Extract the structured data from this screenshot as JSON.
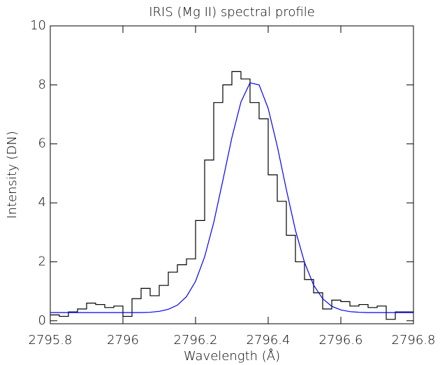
{
  "chart_data": {
    "type": "line",
    "title": "IRIS (Mg II) spectral profile",
    "xlabel": "Wavelength (Å)",
    "ylabel": "Intensity (DN)",
    "xlim": [
      2795.8,
      2796.8
    ],
    "ylim": [
      -0.1,
      10
    ],
    "xticks": [
      2795.8,
      2796.0,
      2796.2,
      2796.4,
      2796.6,
      2796.8
    ],
    "yticks": [
      0,
      2,
      4,
      6,
      8,
      10
    ],
    "series": [
      {
        "drawstyle": "steps-post",
        "color": "#000000",
        "x": [
          2795.8,
          2795.825,
          2795.85,
          2795.875,
          2795.9,
          2795.925,
          2795.95,
          2795.975,
          2796.0,
          2796.025,
          2796.05,
          2796.075,
          2796.1,
          2796.125,
          2796.15,
          2796.175,
          2796.2,
          2796.225,
          2796.25,
          2796.275,
          2796.3,
          2796.325,
          2796.35,
          2796.375,
          2796.4,
          2796.425,
          2796.45,
          2796.475,
          2796.5,
          2796.525,
          2796.55,
          2796.575,
          2796.6,
          2796.625,
          2796.65,
          2796.675,
          2796.7,
          2796.725,
          2796.75,
          2796.775
        ],
        "values": [
          0.2,
          0.15,
          0.3,
          0.4,
          0.6,
          0.55,
          0.45,
          0.5,
          0.15,
          0.75,
          1.1,
          0.85,
          1.2,
          1.65,
          1.9,
          2.1,
          3.4,
          5.45,
          7.4,
          8.0,
          8.45,
          8.2,
          7.4,
          6.85,
          4.95,
          4.05,
          2.9,
          2.0,
          1.4,
          0.95,
          0.4,
          0.7,
          0.65,
          0.5,
          0.55,
          0.45,
          0.5,
          0.05,
          0.3,
          0.3
        ]
      },
      {
        "drawstyle": "line",
        "color": "#0000ff",
        "x": [
          2795.8,
          2795.825,
          2795.85,
          2795.875,
          2795.9,
          2795.925,
          2795.95,
          2795.975,
          2796.0,
          2796.025,
          2796.05,
          2796.075,
          2796.1,
          2796.125,
          2796.15,
          2796.175,
          2796.2,
          2796.225,
          2796.25,
          2796.275,
          2796.3,
          2796.325,
          2796.35,
          2796.375,
          2796.4,
          2796.425,
          2796.45,
          2796.475,
          2796.5,
          2796.525,
          2796.55,
          2796.575,
          2796.6,
          2796.625,
          2796.65,
          2796.675,
          2796.7,
          2796.725,
          2796.75,
          2796.775,
          2796.8
        ],
        "values": [
          0.28,
          0.28,
          0.28,
          0.28,
          0.28,
          0.28,
          0.28,
          0.28,
          0.28,
          0.28,
          0.28,
          0.29,
          0.32,
          0.39,
          0.53,
          0.82,
          1.34,
          2.17,
          3.33,
          4.75,
          6.21,
          7.42,
          8.07,
          8.0,
          7.2,
          5.92,
          4.45,
          3.07,
          1.98,
          1.21,
          0.75,
          0.49,
          0.37,
          0.31,
          0.29,
          0.28,
          0.28,
          0.28,
          0.28,
          0.28,
          0.28
        ]
      }
    ]
  }
}
